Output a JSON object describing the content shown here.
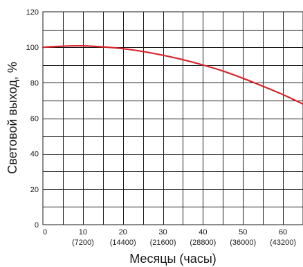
{
  "chart_data": {
    "type": "line",
    "xlabel": "Месяцы (часы)",
    "ylabel": "Световой выход, %",
    "xlim": [
      0,
      65
    ],
    "ylim": [
      0,
      120
    ],
    "x_ticks": [
      {
        "value": 0,
        "label": "0",
        "sub": ""
      },
      {
        "value": 10,
        "label": "10",
        "sub": "(7200)"
      },
      {
        "value": 20,
        "label": "20",
        "sub": "(14400)"
      },
      {
        "value": 30,
        "label": "30",
        "sub": "(21600)"
      },
      {
        "value": 40,
        "label": "40",
        "sub": "(28800)"
      },
      {
        "value": 50,
        "label": "50",
        "sub": "(36000)"
      },
      {
        "value": 60,
        "label": "60",
        "sub": "(43200)"
      }
    ],
    "y_ticks": [
      {
        "value": 0,
        "label": "0"
      },
      {
        "value": 20,
        "label": "20"
      },
      {
        "value": 40,
        "label": "40"
      },
      {
        "value": 60,
        "label": "60"
      },
      {
        "value": 80,
        "label": "80"
      },
      {
        "value": 100,
        "label": "100"
      },
      {
        "value": 120,
        "label": "120"
      }
    ],
    "x_grid_step": 5,
    "y_grid_step": 10,
    "grid": true,
    "series": [
      {
        "color": "#d7262c",
        "x": [
          0,
          5,
          10,
          15,
          20,
          25,
          30,
          35,
          40,
          45,
          50,
          55,
          60,
          65
        ],
        "y": [
          100,
          100.6,
          100.8,
          100.2,
          99.2,
          97.6,
          95.5,
          93,
          90,
          86.6,
          82.5,
          78,
          73.3,
          68
        ]
      }
    ]
  }
}
